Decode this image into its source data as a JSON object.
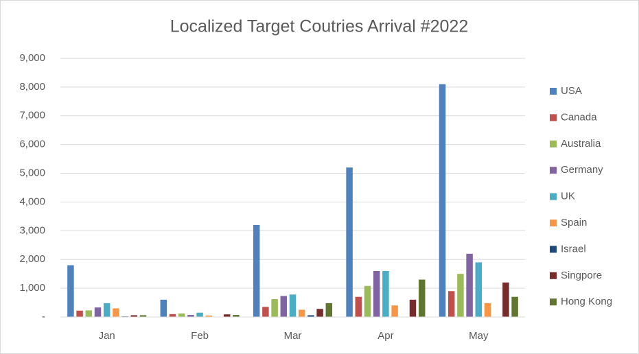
{
  "chart_data": {
    "type": "bar",
    "title": "Localized Target Coutries Arrival #2022",
    "categories": [
      "Jan",
      "Feb",
      "Mar",
      "Apr",
      "May"
    ],
    "series": [
      {
        "name": "USA",
        "color": "#4f81bd",
        "values": [
          1800,
          600,
          3200,
          5200,
          8100
        ]
      },
      {
        "name": "Canada",
        "color": "#c0504d",
        "values": [
          220,
          100,
          350,
          700,
          900
        ]
      },
      {
        "name": "Australia",
        "color": "#9bbb59",
        "values": [
          230,
          120,
          620,
          1080,
          1500
        ]
      },
      {
        "name": "Germany",
        "color": "#8064a2",
        "values": [
          330,
          70,
          730,
          1600,
          2200
        ]
      },
      {
        "name": "UK",
        "color": "#4bacc6",
        "values": [
          480,
          150,
          780,
          1600,
          1900
        ]
      },
      {
        "name": "Spain",
        "color": "#f79646",
        "values": [
          300,
          50,
          250,
          400,
          480
        ]
      },
      {
        "name": "Israel",
        "color": "#1f497d",
        "values": [
          20,
          10,
          60,
          0,
          0
        ]
      },
      {
        "name": "Singpore",
        "color": "#772c2a",
        "values": [
          60,
          90,
          280,
          600,
          1200
        ]
      },
      {
        "name": "Hong Kong",
        "color": "#5f7530",
        "values": [
          60,
          70,
          480,
          1300,
          700
        ]
      }
    ],
    "ylim": [
      0,
      9000
    ],
    "yticks": [
      {
        "value": 0,
        "label": "-"
      },
      {
        "value": 1000,
        "label": "1,000"
      },
      {
        "value": 2000,
        "label": "2,000"
      },
      {
        "value": 3000,
        "label": "3,000"
      },
      {
        "value": 4000,
        "label": "4,000"
      },
      {
        "value": 5000,
        "label": "5,000"
      },
      {
        "value": 6000,
        "label": "6,000"
      },
      {
        "value": 7000,
        "label": "7,000"
      },
      {
        "value": 8000,
        "label": "8,000"
      },
      {
        "value": 9000,
        "label": "9,000"
      }
    ],
    "grid": true,
    "legend": "right"
  }
}
